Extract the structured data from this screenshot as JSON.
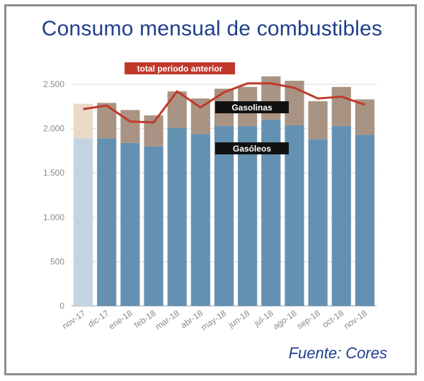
{
  "title": "Consumo mensual de combustibles",
  "source": "Fuente: Cores",
  "colors": {
    "gasoleos": "#6491b1",
    "gasolinas": "#a99382",
    "gasoleos_prev": "#c2d4e1",
    "gasolinas_prev": "#ead9c9",
    "line": "#c0392b",
    "axis_text": "#8a8a8a",
    "grid": "#d9d9d9",
    "title": "#1f3f8c"
  },
  "chart_data": {
    "type": "bar",
    "stacked": true,
    "categories": [
      "nov-17",
      "dic-17",
      "ene-18",
      "feb-18",
      "mar-18",
      "abr-18",
      "may-18",
      "jun-18",
      "jul-18",
      "ago-18",
      "sep-18",
      "oct-18",
      "nov-18"
    ],
    "series": [
      {
        "name": "Gasóleos",
        "values": [
          1890,
          1890,
          1840,
          1800,
          2010,
          1940,
          2030,
          2030,
          2100,
          2040,
          1880,
          2030,
          1930
        ]
      },
      {
        "name": "Gasolinas",
        "values": [
          390,
          400,
          370,
          350,
          410,
          400,
          420,
          440,
          490,
          500,
          430,
          440,
          400
        ]
      }
    ],
    "line": {
      "name": "total periodo anterior",
      "values": [
        2220,
        2260,
        2080,
        2070,
        2420,
        2240,
        2410,
        2510,
        2510,
        2460,
        2340,
        2360,
        2270
      ]
    },
    "yticks": [
      0,
      500,
      1000,
      1500,
      2000,
      2500
    ],
    "ytick_labels": [
      "0",
      "500",
      "1.000",
      "1.500",
      "2.000",
      "2.500"
    ],
    "ylim": [
      0,
      2700
    ],
    "grid": true,
    "highlight_first": true
  }
}
